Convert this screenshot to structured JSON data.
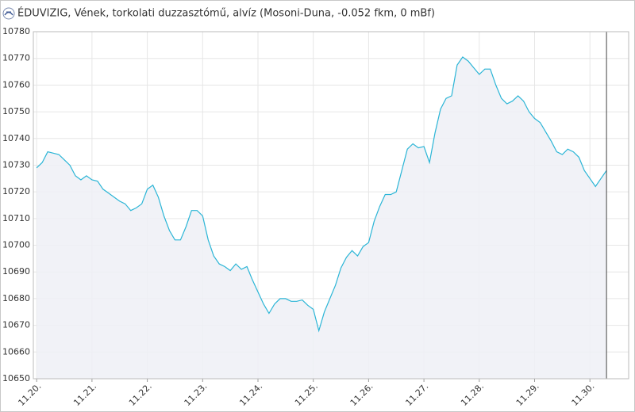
{
  "chart_data": {
    "type": "area",
    "title": "ÉDUVIZIG, Vének, torkolati duzzasztómű, alvíz (Mosoni-Duna, -0.052 fkm, 0 mBf)",
    "x": [
      20,
      20.1,
      20.2,
      20.3,
      20.4,
      20.5,
      20.6,
      20.7,
      20.8,
      20.9,
      21,
      21.1,
      21.2,
      21.3,
      21.4,
      21.5,
      21.6,
      21.7,
      21.8,
      21.9,
      22,
      22.1,
      22.2,
      22.3,
      22.4,
      22.5,
      22.6,
      22.7,
      22.8,
      22.9,
      23,
      23.1,
      23.2,
      23.3,
      23.4,
      23.5,
      23.6,
      23.7,
      23.8,
      23.9,
      24,
      24.1,
      24.2,
      24.3,
      24.4,
      24.5,
      24.6,
      24.7,
      24.8,
      24.9,
      25,
      25.1,
      25.2,
      25.3,
      25.4,
      25.5,
      25.6,
      25.7,
      25.8,
      25.9,
      26,
      26.1,
      26.2,
      26.3,
      26.4,
      26.5,
      26.6,
      26.7,
      26.8,
      26.9,
      27,
      27.1,
      27.2,
      27.3,
      27.4,
      27.5,
      27.6,
      27.7,
      27.8,
      27.9,
      28,
      28.1,
      28.2,
      28.3,
      28.4,
      28.5,
      28.6,
      28.7,
      28.8,
      28.9,
      29,
      29.1,
      29.2,
      29.3,
      29.4,
      29.5,
      29.6,
      29.7,
      29.8,
      29.9,
      30,
      30.1,
      30.2,
      30.3
    ],
    "series": [
      {
        "color": "#2bb5d6",
        "fill": "#eef0f6",
        "values": [
          10729,
          10731,
          10735,
          10734.5,
          10734,
          10732,
          10730,
          10726,
          10724.5,
          10726,
          10724.5,
          10724,
          10721,
          10719.5,
          10718,
          10716.5,
          10715.5,
          10713,
          10714,
          10715.5,
          10721,
          10722.5,
          10718,
          10711,
          10705.5,
          10702,
          10702,
          10707,
          10713,
          10713,
          10711,
          10702,
          10696,
          10693,
          10692,
          10690.5,
          10693,
          10691,
          10692,
          10687,
          10682.5,
          10678,
          10674.5,
          10678,
          10680,
          10680,
          10679,
          10679,
          10679.5,
          10677.5,
          10676,
          10668,
          10675,
          10680,
          10685,
          10691.5,
          10695.5,
          10698,
          10696,
          10699.5,
          10701,
          10709,
          10714.5,
          10719,
          10719,
          10720,
          10728,
          10736,
          10738,
          10736.5,
          10737,
          10731,
          10742,
          10751,
          10755,
          10756,
          10767.5,
          10770.5,
          10769,
          10766.5,
          10764,
          10766,
          10766,
          10760,
          10755,
          10753,
          10754,
          10756,
          10754,
          10750,
          10747.5,
          10746,
          10742.5,
          10739,
          10735,
          10734,
          10736,
          10735,
          10733,
          10728,
          10725,
          10722,
          10725,
          10728
        ]
      }
    ],
    "xlim": [
      19.94,
      30.7
    ],
    "xticks": [
      {
        "value": 20,
        "label": "11.20."
      },
      {
        "value": 21,
        "label": "11.21."
      },
      {
        "value": 22,
        "label": "11.22."
      },
      {
        "value": 23,
        "label": "11.23."
      },
      {
        "value": 24,
        "label": "11.24."
      },
      {
        "value": 25,
        "label": "11.25."
      },
      {
        "value": 26,
        "label": "11.26."
      },
      {
        "value": 27,
        "label": "11.27."
      },
      {
        "value": 28,
        "label": "11.28."
      },
      {
        "value": 29,
        "label": "11.29."
      },
      {
        "value": 30,
        "label": "11.30."
      }
    ],
    "ylim": [
      10650,
      10780
    ],
    "yticks": [
      10650,
      10660,
      10670,
      10680,
      10690,
      10700,
      10710,
      10720,
      10730,
      10740,
      10750,
      10760,
      10770,
      10780
    ],
    "grid": true,
    "marker_x": 30.3
  }
}
